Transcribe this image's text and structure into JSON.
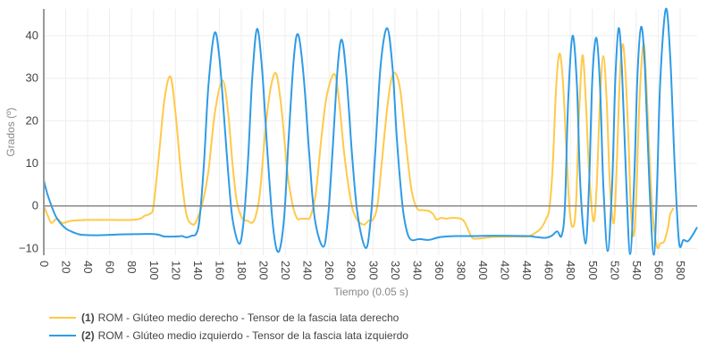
{
  "chart_data": {
    "type": "line",
    "xlabel": "Tiempo (0.05 s)",
    "ylabel": "Grados (º)",
    "xlim": [
      0,
      595.5
    ],
    "ylim": [
      -11.6,
      46.3
    ],
    "xticks": [
      0,
      20,
      40,
      60,
      80,
      100,
      120,
      140,
      160,
      180,
      200,
      220,
      240,
      260,
      280,
      300,
      320,
      340,
      360,
      380,
      400,
      420,
      440,
      460,
      480,
      500,
      520,
      540,
      560,
      580
    ],
    "yticks": [
      -10,
      0,
      10,
      20,
      30,
      40
    ],
    "grid": true,
    "legend_position": "bottom-left",
    "series": [
      {
        "index": "(1)",
        "name": "ROM - Glúteo medio derecho - Tensor de la fascia lata derecho",
        "color": "#FFC94A",
        "points": [
          [
            0,
            0
          ],
          [
            4,
            -2.5
          ],
          [
            7,
            -4
          ],
          [
            12,
            -3
          ],
          [
            17,
            -4
          ],
          [
            25,
            -3.5
          ],
          [
            40,
            -3.3
          ],
          [
            60,
            -3.3
          ],
          [
            80,
            -3.3
          ],
          [
            88,
            -3
          ],
          [
            92,
            -2.3
          ],
          [
            97,
            -1.8
          ],
          [
            100,
            0
          ],
          [
            105,
            12
          ],
          [
            110,
            25
          ],
          [
            115.4,
            30.4
          ],
          [
            120,
            22
          ],
          [
            125,
            8
          ],
          [
            130,
            -2
          ],
          [
            136,
            -4.4
          ],
          [
            140,
            -3
          ],
          [
            145,
            1
          ],
          [
            150,
            8
          ],
          [
            156,
            22
          ],
          [
            163,
            29.5
          ],
          [
            168,
            22
          ],
          [
            172,
            10
          ],
          [
            176,
            1
          ],
          [
            181,
            -3
          ],
          [
            186,
            -3.5
          ],
          [
            189.5,
            -4
          ],
          [
            193,
            -2.5
          ],
          [
            197,
            3
          ],
          [
            202,
            18
          ],
          [
            207,
            28
          ],
          [
            212,
            31
          ],
          [
            217,
            22
          ],
          [
            222,
            8
          ],
          [
            227,
            0
          ],
          [
            231,
            -3
          ],
          [
            234,
            -3
          ],
          [
            239,
            -3
          ],
          [
            243,
            -2.5
          ],
          [
            248,
            3
          ],
          [
            253,
            16
          ],
          [
            258,
            26
          ],
          [
            264.8,
            31
          ],
          [
            269,
            25
          ],
          [
            274,
            12
          ],
          [
            280,
            1
          ],
          [
            285,
            -3
          ],
          [
            291.6,
            -4.4
          ],
          [
            296,
            -3.5
          ],
          [
            300,
            -3.2
          ],
          [
            304,
            0
          ],
          [
            308,
            10
          ],
          [
            313,
            23
          ],
          [
            317,
            30
          ],
          [
            321,
            31
          ],
          [
            325,
            27
          ],
          [
            330,
            15
          ],
          [
            335,
            4
          ],
          [
            340,
            -0.5
          ],
          [
            346,
            -1
          ],
          [
            351,
            -1.2
          ],
          [
            355,
            -2
          ],
          [
            358,
            -3.2
          ],
          [
            362,
            -2.8
          ],
          [
            367,
            -3
          ],
          [
            372,
            -2.8
          ],
          [
            380,
            -3
          ],
          [
            384,
            -4
          ],
          [
            390,
            -7.3
          ],
          [
            395,
            -7.7
          ],
          [
            410,
            -7.3
          ],
          [
            430,
            -7.2
          ],
          [
            441,
            -7.2
          ],
          [
            447,
            -6.5
          ],
          [
            453,
            -5.3
          ],
          [
            458,
            -3
          ],
          [
            461,
            -0.3
          ],
          [
            464,
            10
          ],
          [
            467,
            28
          ],
          [
            470,
            35.8
          ],
          [
            473,
            30
          ],
          [
            476,
            15
          ],
          [
            479,
            0
          ],
          [
            482,
            -5
          ],
          [
            485,
            0
          ],
          [
            488,
            22
          ],
          [
            491,
            35.4
          ],
          [
            494,
            25
          ],
          [
            497,
            8
          ],
          [
            501,
            -3.6
          ],
          [
            504,
            5
          ],
          [
            507,
            25
          ],
          [
            510,
            35.2
          ],
          [
            513,
            25
          ],
          [
            516,
            5
          ],
          [
            519.5,
            -4.1
          ],
          [
            522,
            8
          ],
          [
            525,
            30
          ],
          [
            527.6,
            38
          ],
          [
            530,
            32
          ],
          [
            533,
            15
          ],
          [
            535,
            0
          ],
          [
            537.7,
            -7.1
          ],
          [
            540,
            2
          ],
          [
            543,
            25
          ],
          [
            546.6,
            38
          ],
          [
            549,
            30
          ],
          [
            552,
            12
          ],
          [
            555,
            -2
          ],
          [
            558.9,
            -9.6
          ],
          [
            562,
            -8.8
          ],
          [
            565.5,
            -8.3
          ],
          [
            569,
            -5
          ],
          [
            571,
            -2
          ],
          [
            574,
            -0.5
          ]
        ]
      },
      {
        "index": "(2)",
        "name": "ROM - Glúteo medio izquierdo - Tensor de la fascia lata izquierdo",
        "color": "#2E9BE6",
        "points": [
          [
            0,
            6
          ],
          [
            3,
            3
          ],
          [
            7,
            0
          ],
          [
            11,
            -2.5
          ],
          [
            15,
            -4
          ],
          [
            20,
            -5.3
          ],
          [
            25,
            -6
          ],
          [
            30,
            -6.5
          ],
          [
            35,
            -6.8
          ],
          [
            50,
            -6.9
          ],
          [
            70,
            -6.7
          ],
          [
            90,
            -6.6
          ],
          [
            100,
            -6.6
          ],
          [
            105,
            -6.8
          ],
          [
            110,
            -7.2
          ],
          [
            120,
            -7.2
          ],
          [
            126,
            -7.1
          ],
          [
            130,
            -7.4
          ],
          [
            135,
            -7
          ],
          [
            139,
            -6.5
          ],
          [
            142,
            -3
          ],
          [
            146,
            10
          ],
          [
            150,
            28
          ],
          [
            155.6,
            40.6
          ],
          [
            160,
            35
          ],
          [
            164,
            22
          ],
          [
            168,
            8
          ],
          [
            172,
            -3
          ],
          [
            178,
            -8.9
          ],
          [
            182,
            -4
          ],
          [
            186,
            10
          ],
          [
            190,
            30
          ],
          [
            194.4,
            41.6
          ],
          [
            199,
            32
          ],
          [
            204,
            12
          ],
          [
            209,
            -5
          ],
          [
            214,
            -10.8
          ],
          [
            219,
            -3
          ],
          [
            223,
            15
          ],
          [
            228,
            35
          ],
          [
            232,
            40.2
          ],
          [
            237,
            30
          ],
          [
            242,
            12
          ],
          [
            247,
            -3
          ],
          [
            254.7,
            -9.6
          ],
          [
            259,
            -3
          ],
          [
            263,
            12
          ],
          [
            268,
            33
          ],
          [
            271.8,
            39
          ],
          [
            276,
            30
          ],
          [
            281,
            12
          ],
          [
            286,
            -2
          ],
          [
            293.5,
            -9.9
          ],
          [
            298,
            -3
          ],
          [
            302,
            12
          ],
          [
            307,
            33
          ],
          [
            313,
            41.8
          ],
          [
            318,
            32
          ],
          [
            322,
            15
          ],
          [
            327,
            0
          ],
          [
            331,
            -6
          ],
          [
            335,
            -8
          ],
          [
            342,
            -7.8
          ],
          [
            351,
            -8
          ],
          [
            357,
            -7.6
          ],
          [
            362,
            -7.3
          ],
          [
            375,
            -7.1
          ],
          [
            389,
            -7.1
          ],
          [
            410,
            -7
          ],
          [
            441,
            -7.1
          ],
          [
            448,
            -7.3
          ],
          [
            457,
            -7.5
          ],
          [
            463,
            -7
          ],
          [
            468,
            -6
          ],
          [
            472,
            -7
          ],
          [
            475,
            0
          ],
          [
            478,
            25
          ],
          [
            482,
            40
          ],
          [
            486,
            28
          ],
          [
            489,
            5
          ],
          [
            493.7,
            -8.9
          ],
          [
            497,
            5
          ],
          [
            500,
            30
          ],
          [
            503.7,
            39.5
          ],
          [
            507,
            28
          ],
          [
            510,
            5
          ],
          [
            514,
            -10.6
          ],
          [
            518,
            5
          ],
          [
            521,
            30
          ],
          [
            524,
            41.8
          ],
          [
            527,
            32
          ],
          [
            531,
            5
          ],
          [
            534.4,
            -11.3
          ],
          [
            538,
            5
          ],
          [
            541,
            30
          ],
          [
            544.5,
            42.1
          ],
          [
            548,
            32
          ],
          [
            552,
            5
          ],
          [
            556,
            -11.5
          ],
          [
            559,
            5
          ],
          [
            562,
            30
          ],
          [
            567,
            46.3
          ],
          [
            571,
            35
          ],
          [
            575,
            10
          ],
          [
            579,
            -8.5
          ],
          [
            583,
            -8
          ],
          [
            587,
            -8.3
          ],
          [
            591,
            -7
          ],
          [
            595.5,
            -5
          ]
        ]
      }
    ]
  }
}
